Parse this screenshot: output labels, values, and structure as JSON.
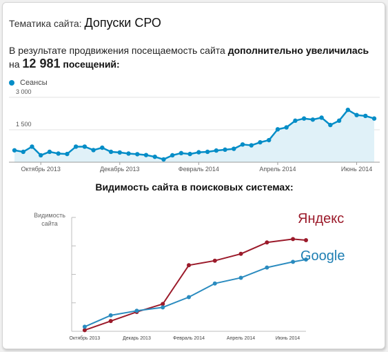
{
  "header": {
    "prefix": "Тематика сайта:",
    "topic": "Допуски СРО"
  },
  "summary": {
    "text1": "В результате продвижения посещаемость сайта",
    "bold1": "дополнительно увеличилась",
    "text2": "на",
    "big_number": "12 981",
    "bold2": "посещений:"
  },
  "colors": {
    "sessions": "#058dc7",
    "sessions_fill": "#e0f1f8",
    "yandex": "#9b1a2a",
    "google": "#2a8bbf"
  },
  "chart_data": [
    {
      "type": "area",
      "title": "",
      "legend": [
        "Сеансы"
      ],
      "legend_position": "top-left",
      "grid": true,
      "ylim": [
        0,
        3000
      ],
      "yticks": [
        {
          "value": 1500,
          "label": "1 500"
        },
        {
          "value": 3000,
          "label": "3 000"
        }
      ],
      "xticks": [
        {
          "index": 3,
          "label": "Октябрь 2013"
        },
        {
          "index": 12,
          "label": "Декабрь 2013"
        },
        {
          "index": 21,
          "label": "Февраль 2014"
        },
        {
          "index": 30,
          "label": "Апрель 2014"
        },
        {
          "index": 39,
          "label": "Июнь 2014"
        }
      ],
      "series": [
        {
          "name": "Сеансы",
          "values": [
            550,
            480,
            720,
            320,
            480,
            400,
            380,
            720,
            720,
            560,
            670,
            480,
            450,
            400,
            370,
            330,
            250,
            130,
            320,
            420,
            380,
            460,
            480,
            540,
            580,
            620,
            820,
            780,
            920,
            1020,
            1520,
            1610,
            1920,
            2020,
            1970,
            2060,
            1720,
            1920,
            2420,
            2180,
            2140,
            2020
          ]
        }
      ]
    },
    {
      "type": "line",
      "title": "Видимость сайта в поисковых системах:",
      "ylabel": "Видимость сайта",
      "ylim": [
        0,
        100
      ],
      "yticks": [
        25,
        50,
        75,
        100
      ],
      "xlim": [
        0,
        9
      ],
      "xticks": [
        {
          "x": 0.5,
          "label": "Октябрь 2013"
        },
        {
          "x": 2.5,
          "label": "Декарь 2013"
        },
        {
          "x": 4.5,
          "label": "Февраль 2014"
        },
        {
          "x": 6.5,
          "label": "Апрель 2014"
        },
        {
          "x": 8.3,
          "label": "Июнь 2014"
        }
      ],
      "series": [
        {
          "name": "Яндекс",
          "x": [
            0.5,
            1.5,
            2.5,
            3.5,
            4.5,
            5.5,
            6.5,
            7.5,
            8.5,
            9
          ],
          "values": [
            1,
            9,
            17,
            24,
            58,
            62,
            68,
            78,
            81,
            80
          ]
        },
        {
          "name": "Google",
          "x": [
            0.5,
            1.5,
            2.5,
            3.5,
            4.5,
            5.5,
            6.5,
            7.5,
            8.5,
            9
          ],
          "values": [
            4,
            14,
            18,
            21,
            30,
            42,
            47,
            56,
            61,
            63
          ]
        }
      ]
    }
  ]
}
